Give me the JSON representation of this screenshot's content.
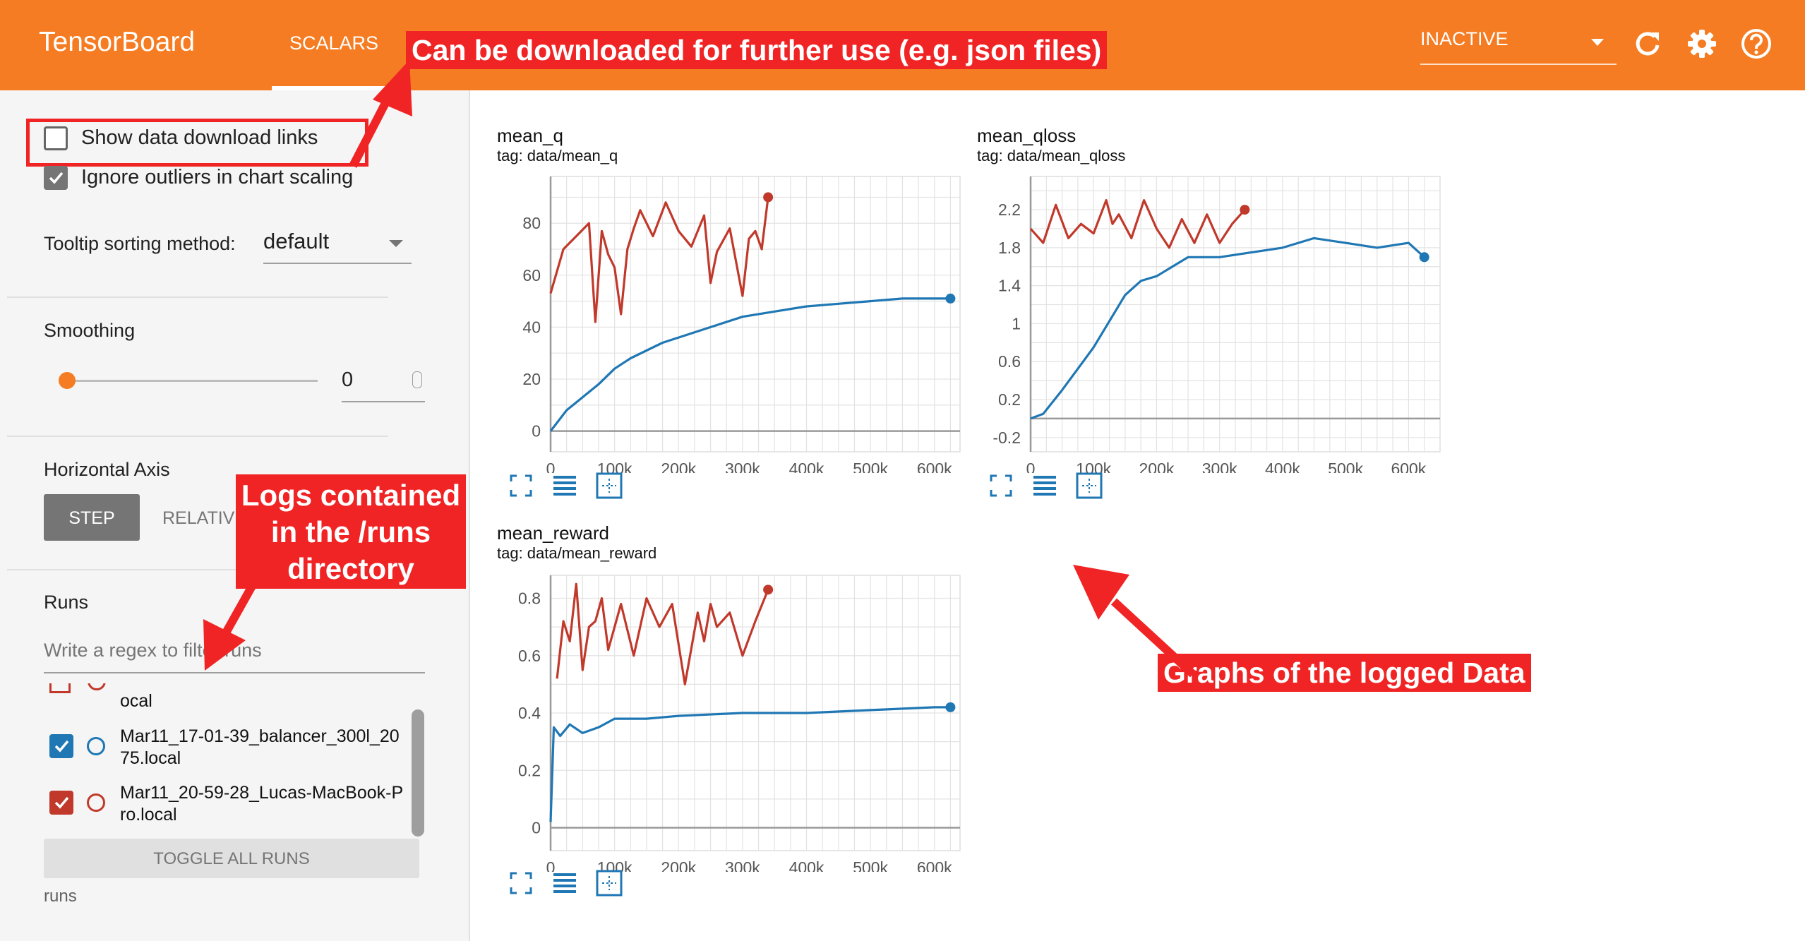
{
  "topbar": {
    "brand": "TensorBoard",
    "tab": "SCALARS",
    "status": "INACTIVE",
    "icons": [
      "reload-icon",
      "settings-icon",
      "help-icon"
    ]
  },
  "sidebar": {
    "show_download_links": "Show data download links",
    "ignore_outliers": "Ignore outliers in chart scaling",
    "tooltip_label": "Tooltip sorting method:",
    "tooltip_value": "default",
    "smoothing_label": "Smoothing",
    "smoothing_value": "0",
    "horizontal_axis_label": "Horizontal Axis",
    "axis_step": "STEP",
    "axis_relative": "RELATIVE",
    "runs_label": "Runs",
    "runs_filter_placeholder": "Write a regex to filter runs",
    "runs": [
      {
        "line1": "",
        "line2": "ocal"
      },
      {
        "line1": "Mar11_17-01-39_balancer_300l_20",
        "line2": "75.local"
      },
      {
        "line1": "Mar11_20-59-28_Lucas-MacBook-P",
        "line2": "ro.local"
      }
    ],
    "toggle_all": "TOGGLE ALL RUNS",
    "footer": "runs"
  },
  "annotations": {
    "download": "Can be downloaded for further use (e.g. json files)",
    "logs_1": "Logs contained",
    "logs_2": "in the /runs",
    "logs_3": "directory",
    "graphs": "Graphs of the logged Data"
  },
  "colors": {
    "accent": "#f57c22",
    "run_blue": "#1f77b4",
    "run_red": "#c0392b",
    "annotation": "#f02424"
  },
  "chart_data": [
    {
      "type": "line",
      "title": "mean_q",
      "subtitle": "tag: data/mean_q",
      "xlim": [
        0,
        640000
      ],
      "ylim": [
        -8,
        98
      ],
      "xticks": [
        0,
        100000,
        200000,
        300000,
        400000,
        500000,
        600000
      ],
      "xtick_labels": [
        "0",
        "100k",
        "200k",
        "300k",
        "400k",
        "500k",
        "600k"
      ],
      "yticks": [
        0,
        20,
        40,
        60,
        80
      ],
      "ytick_labels": [
        "0",
        "20",
        "40",
        "60",
        "80"
      ],
      "series": [
        {
          "color": "#c0392b",
          "x": [
            0,
            20000,
            40000,
            60000,
            70000,
            80000,
            90000,
            100000,
            110000,
            120000,
            130000,
            140000,
            160000,
            180000,
            200000,
            220000,
            240000,
            250000,
            260000,
            280000,
            300000,
            310000,
            320000,
            330000,
            340000
          ],
          "y": [
            53,
            70,
            75,
            80,
            42,
            77,
            68,
            63,
            45,
            70,
            78,
            85,
            75,
            88,
            77,
            71,
            83,
            57,
            69,
            78,
            52,
            74,
            77,
            70,
            90
          ]
        },
        {
          "color": "#1f77b4",
          "x": [
            0,
            25000,
            50000,
            75000,
            100000,
            125000,
            150000,
            175000,
            200000,
            250000,
            300000,
            350000,
            400000,
            450000,
            500000,
            550000,
            600000,
            625000
          ],
          "y": [
            0,
            8,
            13,
            18,
            24,
            28,
            31,
            34,
            36,
            40,
            44,
            46,
            48,
            49,
            50,
            51,
            51,
            51
          ]
        }
      ]
    },
    {
      "type": "line",
      "title": "mean_qloss",
      "subtitle": "tag: data/mean_qloss",
      "xlim": [
        0,
        650000
      ],
      "ylim": [
        -0.35,
        2.55
      ],
      "xticks": [
        0,
        100000,
        200000,
        300000,
        400000,
        500000,
        600000
      ],
      "xtick_labels": [
        "0",
        "100k",
        "200k",
        "300k",
        "400k",
        "500k",
        "600k"
      ],
      "yticks": [
        -0.2,
        0.2,
        0.6,
        1.0,
        1.4,
        1.8,
        2.2
      ],
      "ytick_labels": [
        "-0.2",
        "0.2",
        "0.6",
        "1",
        "1.4",
        "1.8",
        "2.2"
      ],
      "series": [
        {
          "color": "#c0392b",
          "x": [
            0,
            20000,
            40000,
            60000,
            80000,
            100000,
            120000,
            130000,
            140000,
            160000,
            180000,
            200000,
            220000,
            240000,
            260000,
            280000,
            300000,
            320000,
            340000
          ],
          "y": [
            2.0,
            1.85,
            2.25,
            1.9,
            2.05,
            1.95,
            2.3,
            2.05,
            2.15,
            1.9,
            2.3,
            2.0,
            1.8,
            2.1,
            1.85,
            2.15,
            1.85,
            2.05,
            2.2
          ]
        },
        {
          "color": "#1f77b4",
          "x": [
            0,
            20000,
            50000,
            100000,
            150000,
            175000,
            200000,
            250000,
            300000,
            350000,
            400000,
            450000,
            500000,
            550000,
            600000,
            625000
          ],
          "y": [
            0.0,
            0.05,
            0.3,
            0.75,
            1.3,
            1.45,
            1.5,
            1.7,
            1.7,
            1.75,
            1.8,
            1.9,
            1.85,
            1.8,
            1.85,
            1.7
          ]
        }
      ]
    },
    {
      "type": "line",
      "title": "mean_reward",
      "subtitle": "tag: data/mean_reward",
      "xlim": [
        0,
        640000
      ],
      "ylim": [
        -0.08,
        0.88
      ],
      "xticks": [
        0,
        100000,
        200000,
        300000,
        400000,
        500000,
        600000
      ],
      "xtick_labels": [
        "0",
        "100k",
        "200k",
        "300k",
        "400k",
        "500k",
        "600k"
      ],
      "yticks": [
        0,
        0.2,
        0.4,
        0.6,
        0.8
      ],
      "ytick_labels": [
        "0",
        "0.2",
        "0.4",
        "0.6",
        "0.8"
      ],
      "series": [
        {
          "color": "#c0392b",
          "x": [
            10000,
            20000,
            30000,
            40000,
            50000,
            60000,
            70000,
            80000,
            90000,
            110000,
            130000,
            150000,
            170000,
            190000,
            210000,
            230000,
            240000,
            250000,
            260000,
            280000,
            300000,
            320000,
            340000
          ],
          "y": [
            0.52,
            0.72,
            0.65,
            0.85,
            0.55,
            0.7,
            0.72,
            0.8,
            0.62,
            0.78,
            0.6,
            0.8,
            0.7,
            0.78,
            0.5,
            0.75,
            0.65,
            0.78,
            0.7,
            0.75,
            0.6,
            0.72,
            0.83
          ]
        },
        {
          "color": "#1f77b4",
          "x": [
            0,
            5000,
            15000,
            30000,
            50000,
            75000,
            100000,
            150000,
            200000,
            300000,
            400000,
            500000,
            600000,
            625000
          ],
          "y": [
            0.02,
            0.35,
            0.32,
            0.36,
            0.33,
            0.35,
            0.38,
            0.38,
            0.39,
            0.4,
            0.4,
            0.41,
            0.42,
            0.42
          ]
        }
      ]
    }
  ]
}
